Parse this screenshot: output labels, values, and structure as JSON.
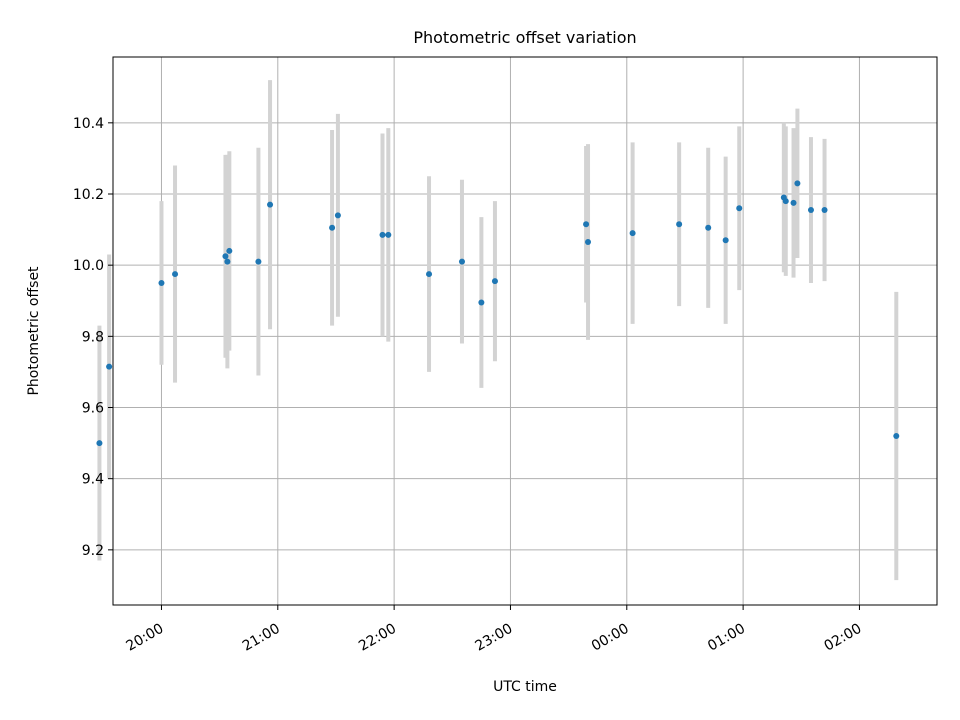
{
  "chart_data": {
    "type": "scatter",
    "title": "Photometric offset variation",
    "xlabel": "UTC time",
    "ylabel": "Photometric offset",
    "x_axis_kind": "time",
    "x_range": [
      "19:35",
      "02:40"
    ],
    "x_ticks": [
      "20:00",
      "21:00",
      "22:00",
      "23:00",
      "00:00",
      "01:00",
      "02:00"
    ],
    "ylim": [
      9.045,
      10.585
    ],
    "y_ticks": [
      "9.2",
      "9.4",
      "9.6",
      "9.8",
      "10.0",
      "10.2",
      "10.4"
    ],
    "grid": true,
    "colors": {
      "points": "#1f77b4",
      "error_bars": "#d3d3d3",
      "grid": "#b0b0b0"
    },
    "points": [
      {
        "x": "19:28",
        "y": 9.5,
        "err": 0.33
      },
      {
        "x": "19:33",
        "y": 9.715,
        "err": 0.315
      },
      {
        "x": "20:00",
        "y": 9.95,
        "err": 0.23
      },
      {
        "x": "20:07",
        "y": 9.975,
        "err": 0.305
      },
      {
        "x": "20:33",
        "y": 10.025,
        "err": 0.285
      },
      {
        "x": "20:34",
        "y": 10.01,
        "err": 0.3
      },
      {
        "x": "20:35",
        "y": 10.04,
        "err": 0.28
      },
      {
        "x": "20:50",
        "y": 10.01,
        "err": 0.32
      },
      {
        "x": "20:56",
        "y": 10.17,
        "err": 0.35
      },
      {
        "x": "21:28",
        "y": 10.105,
        "err": 0.275
      },
      {
        "x": "21:31",
        "y": 10.14,
        "err": 0.285
      },
      {
        "x": "21:54",
        "y": 10.085,
        "err": 0.285
      },
      {
        "x": "21:57",
        "y": 10.085,
        "err": 0.3
      },
      {
        "x": "22:18",
        "y": 9.975,
        "err": 0.275
      },
      {
        "x": "22:35",
        "y": 10.01,
        "err": 0.23
      },
      {
        "x": "22:45",
        "y": 9.895,
        "err": 0.24
      },
      {
        "x": "22:52",
        "y": 9.955,
        "err": 0.225
      },
      {
        "x": "23:39",
        "y": 10.115,
        "err": 0.22
      },
      {
        "x": "23:40",
        "y": 10.065,
        "err": 0.275
      },
      {
        "x": "00:03",
        "y": 10.09,
        "err": 0.255
      },
      {
        "x": "00:27",
        "y": 10.115,
        "err": 0.23
      },
      {
        "x": "00:42",
        "y": 10.105,
        "err": 0.225
      },
      {
        "x": "00:51",
        "y": 10.07,
        "err": 0.235
      },
      {
        "x": "00:58",
        "y": 10.16,
        "err": 0.23
      },
      {
        "x": "01:21",
        "y": 10.19,
        "err": 0.21
      },
      {
        "x": "01:22",
        "y": 10.18,
        "err": 0.21
      },
      {
        "x": "01:26",
        "y": 10.175,
        "err": 0.21
      },
      {
        "x": "01:28",
        "y": 10.23,
        "err": 0.21
      },
      {
        "x": "01:35",
        "y": 10.155,
        "err": 0.205
      },
      {
        "x": "01:42",
        "y": 10.155,
        "err": 0.2
      },
      {
        "x": "02:19",
        "y": 9.52,
        "err": 0.405
      }
    ]
  }
}
